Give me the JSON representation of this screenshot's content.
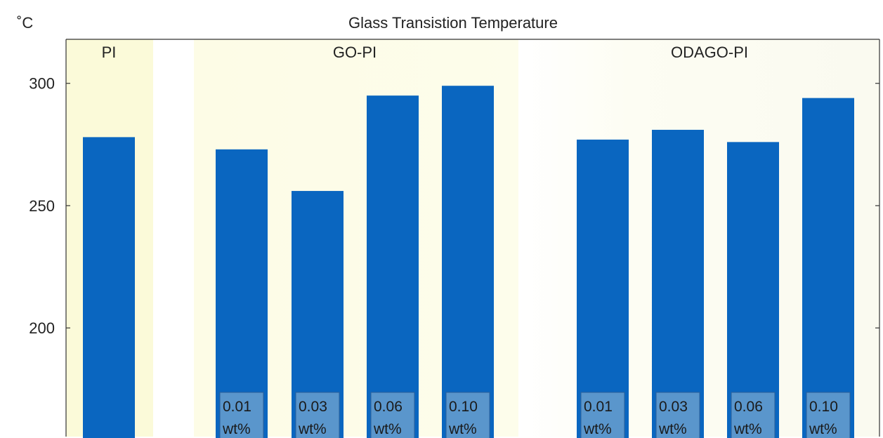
{
  "chart_data": {
    "type": "bar",
    "title": "Glass Transistion Temperature",
    "ylabel": "˚C",
    "ylim": [
      155,
      318
    ],
    "yticks": [
      200,
      250,
      300
    ],
    "grid": false,
    "legend": "none",
    "groups": [
      {
        "name": "PI",
        "bars": [
          {
            "label": "",
            "unit": "",
            "value": 278
          }
        ]
      },
      {
        "name": "GO-PI",
        "bars": [
          {
            "label": "0.01",
            "unit": "wt%",
            "value": 273
          },
          {
            "label": "0.03",
            "unit": "wt%",
            "value": 256
          },
          {
            "label": "0.06",
            "unit": "wt%",
            "value": 295
          },
          {
            "label": "0.10",
            "unit": "wt%",
            "value": 299
          }
        ]
      },
      {
        "name": "ODAGO-PI",
        "bars": [
          {
            "label": "0.01",
            "unit": "wt%",
            "value": 277
          },
          {
            "label": "0.03",
            "unit": "wt%",
            "value": 281
          },
          {
            "label": "0.06",
            "unit": "wt%",
            "value": 276
          },
          {
            "label": "0.10",
            "unit": "wt%",
            "value": 294
          }
        ]
      }
    ]
  },
  "colors": {
    "bar": "#0a66c0",
    "label_box": "#5a96cc",
    "group_bg_pi": "#fbfad9",
    "group_bg_gopi": "#fdfce8",
    "axis": "#333333",
    "text": "#222222"
  }
}
